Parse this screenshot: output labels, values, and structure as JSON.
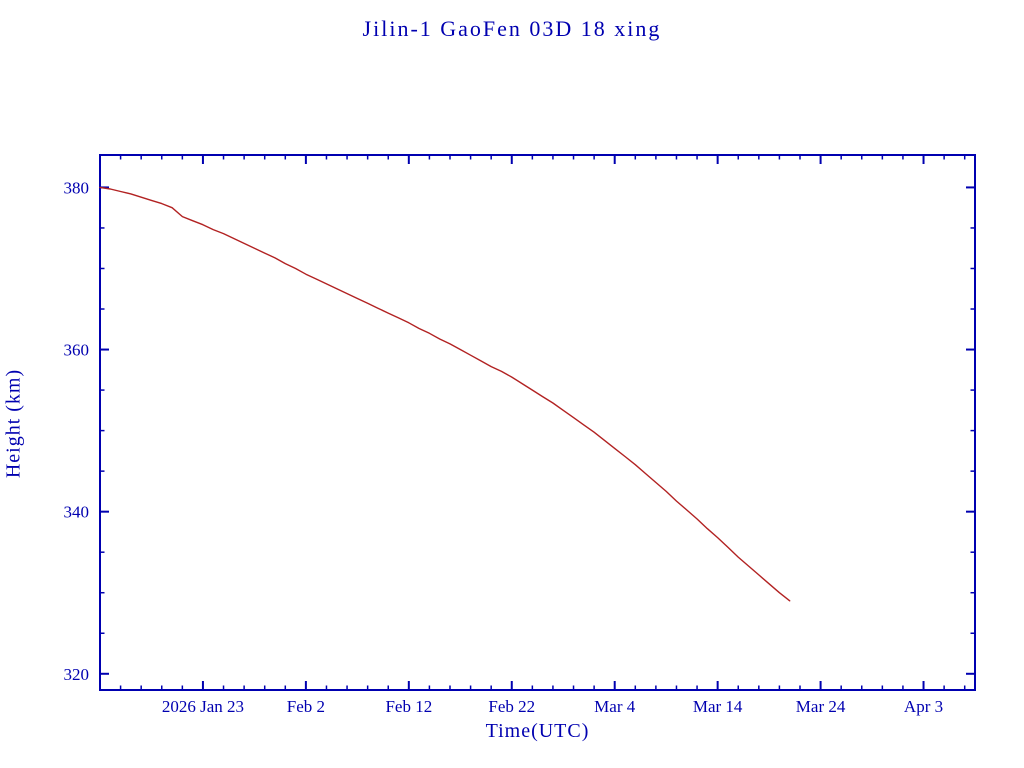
{
  "chart_data": {
    "type": "line",
    "title": "Jilin-1 GaoFen 03D 18 xing",
    "xlabel": "Time(UTC)",
    "ylabel": "Height (km)",
    "legend": null,
    "grid": false,
    "x_unit": "days since 2026 Jan 13",
    "xlim_days": [
      0,
      85
    ],
    "ylim": [
      318,
      384
    ],
    "y_ticks": [
      320,
      340,
      360,
      380
    ],
    "y_minor_step": 5,
    "x_minor_step_days": 2,
    "x_ticks": [
      {
        "day": 10,
        "label": "2026 Jan 23"
      },
      {
        "day": 20,
        "label": "Feb 2"
      },
      {
        "day": 30,
        "label": "Feb 12"
      },
      {
        "day": 40,
        "label": "Feb 22"
      },
      {
        "day": 50,
        "label": "Mar 4"
      },
      {
        "day": 60,
        "label": "Mar 14"
      },
      {
        "day": 70,
        "label": "Mar 24"
      },
      {
        "day": 80,
        "label": "Apr 3"
      }
    ],
    "x": [
      0,
      1,
      2,
      3,
      4,
      5,
      6,
      7,
      8,
      9,
      10,
      11,
      12,
      13,
      14,
      15,
      16,
      17,
      18,
      19,
      20,
      21,
      22,
      23,
      24,
      25,
      26,
      27,
      28,
      29,
      30,
      31,
      32,
      33,
      34,
      35,
      36,
      37,
      38,
      39,
      40,
      41,
      42,
      43,
      44,
      45,
      46,
      47,
      48,
      49,
      50,
      51,
      52,
      53,
      54,
      55,
      56,
      57,
      58,
      59,
      60,
      61,
      62,
      63,
      64,
      65,
      66,
      67
    ],
    "dates": [
      "Jan 13",
      "Jan 14",
      "Jan 15",
      "Jan 16",
      "Jan 17",
      "Jan 18",
      "Jan 19",
      "Jan 20",
      "Jan 21",
      "Jan 22",
      "Jan 23",
      "Jan 24",
      "Jan 25",
      "Jan 26",
      "Jan 27",
      "Jan 28",
      "Jan 29",
      "Jan 30",
      "Jan 31",
      "Feb 1",
      "Feb 2",
      "Feb 3",
      "Feb 4",
      "Feb 5",
      "Feb 6",
      "Feb 7",
      "Feb 8",
      "Feb 9",
      "Feb 10",
      "Feb 11",
      "Feb 12",
      "Feb 13",
      "Feb 14",
      "Feb 15",
      "Feb 16",
      "Feb 17",
      "Feb 18",
      "Feb 19",
      "Feb 20",
      "Feb 21",
      "Feb 22",
      "Feb 23",
      "Feb 24",
      "Feb 25",
      "Feb 26",
      "Feb 27",
      "Feb 28",
      "Mar 1",
      "Mar 2",
      "Mar 3",
      "Mar 4",
      "Mar 5",
      "Mar 6",
      "Mar 7",
      "Mar 8",
      "Mar 9",
      "Mar 10",
      "Mar 11",
      "Mar 12",
      "Mar 13",
      "Mar 14",
      "Mar 15",
      "Mar 16",
      "Mar 17",
      "Mar 18",
      "Mar 19",
      "Mar 20",
      "Mar 21"
    ],
    "series": [
      {
        "name": "orbital height (km)",
        "values": [
          380.0,
          379.8,
          379.5,
          379.2,
          378.8,
          378.4,
          378.0,
          377.5,
          376.4,
          375.9,
          375.4,
          374.8,
          374.3,
          373.7,
          373.1,
          372.5,
          371.9,
          371.3,
          370.6,
          370.0,
          369.3,
          368.7,
          368.1,
          367.5,
          366.9,
          366.3,
          365.7,
          365.1,
          364.5,
          363.9,
          363.3,
          362.6,
          362.0,
          361.3,
          360.7,
          360.0,
          359.3,
          358.6,
          357.9,
          357.3,
          356.6,
          355.8,
          355.0,
          354.2,
          353.4,
          352.5,
          351.6,
          350.7,
          349.8,
          348.8,
          347.8,
          346.8,
          345.8,
          344.7,
          343.6,
          342.5,
          341.3,
          340.2,
          339.1,
          337.9,
          336.8,
          335.6,
          334.4,
          333.3,
          332.2,
          331.1,
          330.0,
          329.0
        ]
      }
    ],
    "colors": {
      "axis": "#0000b0",
      "text": "#0000b0",
      "line": "#b22222",
      "background": "#ffffff"
    }
  }
}
